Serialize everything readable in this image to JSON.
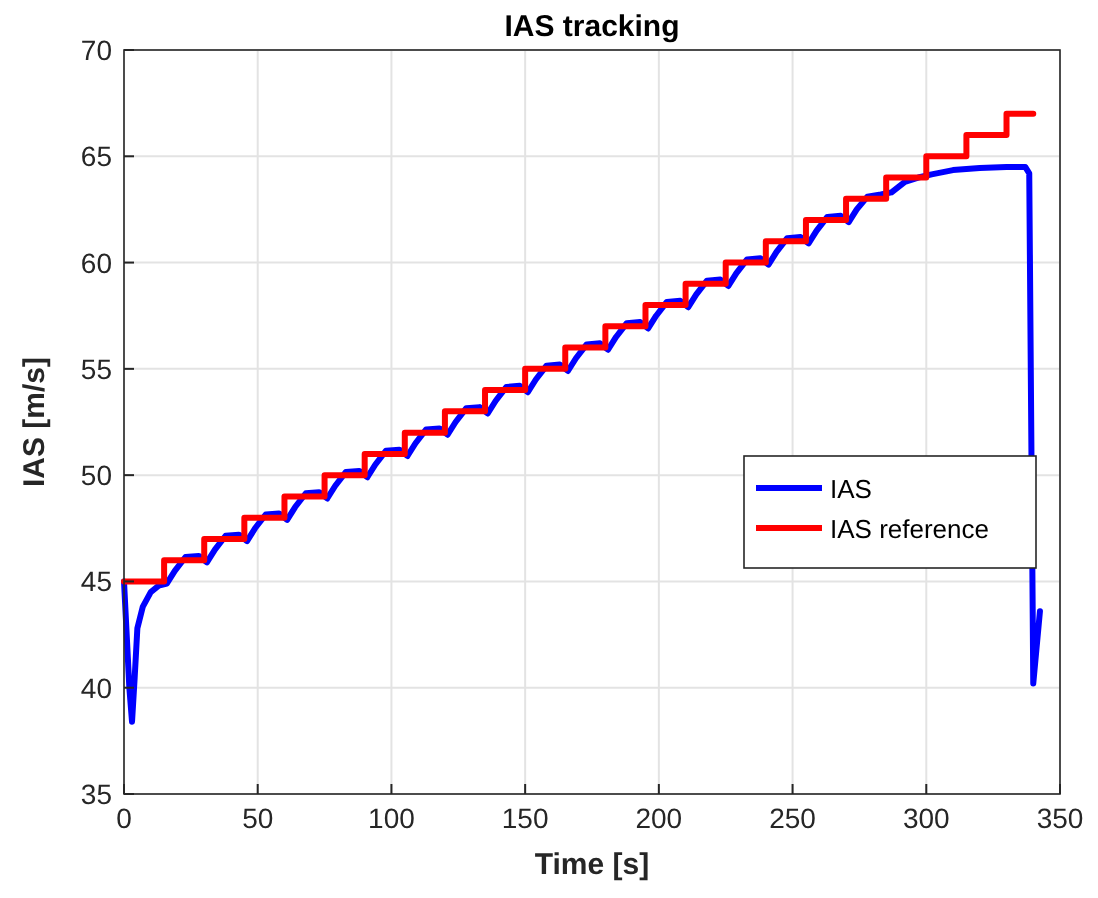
{
  "chart_data": {
    "type": "line",
    "title": "IAS tracking",
    "xlabel": "Time [s]",
    "ylabel": "IAS [m/s]",
    "xlim": [
      0,
      350
    ],
    "xticks": [
      0,
      50,
      100,
      150,
      200,
      250,
      300,
      350
    ],
    "ylim": [
      35,
      70
    ],
    "yticks": [
      35,
      40,
      45,
      50,
      55,
      60,
      65,
      70
    ],
    "grid": true,
    "legend": "right",
    "series": [
      {
        "name": "IAS",
        "color": "#0000ff",
        "x": [
          0,
          2,
          3,
          4,
          5,
          7,
          10,
          13,
          16,
          19,
          23,
          28,
          31,
          34,
          38,
          43,
          46,
          49,
          53,
          58,
          61,
          64,
          68,
          73,
          76,
          79,
          83,
          88,
          91,
          94,
          98,
          103,
          106,
          109,
          113,
          118,
          121,
          124,
          128,
          133,
          136,
          139,
          143,
          148,
          151,
          154,
          158,
          163,
          166,
          169,
          173,
          178,
          181,
          184,
          188,
          193,
          196,
          199,
          203,
          208,
          211,
          214,
          218,
          223,
          226,
          229,
          233,
          238,
          241,
          244,
          248,
          253,
          256,
          259,
          263,
          268,
          271,
          274,
          278,
          283,
          287,
          292,
          297,
          302,
          310,
          320,
          330,
          337,
          338.5,
          340,
          342.5
        ],
        "values": [
          45,
          40,
          38.4,
          40.5,
          42.8,
          43.8,
          44.5,
          44.8,
          44.9,
          45.5,
          46.15,
          46.2,
          45.9,
          46.5,
          47.15,
          47.2,
          46.9,
          47.5,
          48.15,
          48.2,
          47.9,
          48.5,
          49.15,
          49.2,
          48.9,
          49.5,
          50.15,
          50.2,
          49.9,
          50.5,
          51.15,
          51.2,
          50.9,
          51.5,
          52.15,
          52.2,
          51.9,
          52.5,
          53.15,
          53.2,
          52.9,
          53.5,
          54.15,
          54.2,
          53.9,
          54.5,
          55.15,
          55.2,
          54.9,
          55.5,
          56.15,
          56.2,
          55.9,
          56.5,
          57.15,
          57.2,
          56.9,
          57.5,
          58.15,
          58.2,
          57.9,
          58.5,
          59.15,
          59.2,
          58.9,
          59.5,
          60.15,
          60.2,
          59.9,
          60.5,
          61.15,
          61.2,
          60.9,
          61.5,
          62.15,
          62.2,
          61.9,
          62.5,
          63.1,
          63.2,
          63.3,
          63.8,
          64.0,
          64.15,
          64.35,
          64.45,
          64.5,
          64.5,
          64.2,
          40.2,
          43.6
        ]
      },
      {
        "name": "IAS reference",
        "type": "step",
        "color": "#ff0000",
        "x": [
          0,
          15,
          30,
          45,
          60,
          75,
          90,
          105,
          120,
          135,
          150,
          165,
          180,
          195,
          210,
          225,
          240,
          255,
          270,
          285,
          300,
          315,
          330,
          340
        ],
        "values": [
          45,
          46,
          47,
          48,
          49,
          50,
          51,
          52,
          53,
          54,
          55,
          56,
          57,
          58,
          59,
          60,
          61,
          62,
          63,
          64,
          65,
          66,
          67,
          67
        ]
      }
    ]
  }
}
